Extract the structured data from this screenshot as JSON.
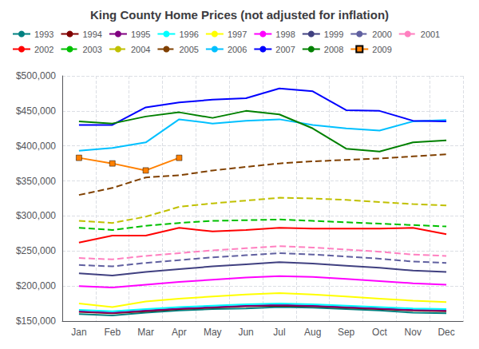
{
  "chart_data": {
    "type": "line",
    "title": "King County Home Prices (not adjusted for inflation)",
    "categories": [
      "Jan",
      "Feb",
      "Mar",
      "Apr",
      "May",
      "Jun",
      "Jul",
      "Aug",
      "Sep",
      "Oct",
      "Nov",
      "Dec"
    ],
    "series": [
      {
        "name": "1993",
        "color": "#008080",
        "line_style": "solid",
        "values": [
          160000,
          158000,
          162000,
          165000,
          167000,
          168000,
          170000,
          169000,
          167000,
          165000,
          162000,
          161000
        ]
      },
      {
        "name": "1994",
        "color": "#800000",
        "line_style": "solid",
        "values": [
          163000,
          161000,
          164000,
          167000,
          169000,
          171000,
          172000,
          171000,
          169000,
          167000,
          165000,
          164000
        ]
      },
      {
        "name": "1995",
        "color": "#800080",
        "line_style": "solid",
        "values": [
          164000,
          162000,
          165000,
          168000,
          170000,
          172000,
          173000,
          172000,
          170000,
          168000,
          166000,
          165000
        ]
      },
      {
        "name": "1996",
        "color": "#00ffff",
        "line_style": "solid",
        "values": [
          166000,
          164000,
          167000,
          170000,
          172000,
          174000,
          175000,
          174000,
          172000,
          170000,
          168000,
          167000
        ]
      },
      {
        "name": "1997",
        "color": "#ffff00",
        "line_style": "solid",
        "values": [
          175000,
          170000,
          178000,
          182000,
          185000,
          188000,
          190000,
          188000,
          185000,
          182000,
          179000,
          177000
        ]
      },
      {
        "name": "1998",
        "color": "#ff00ff",
        "line_style": "solid",
        "values": [
          200000,
          198000,
          202000,
          206000,
          209000,
          212000,
          214000,
          213000,
          210000,
          207000,
          204000,
          202000
        ]
      },
      {
        "name": "1999",
        "color": "#404080",
        "line_style": "solid",
        "values": [
          218000,
          215000,
          220000,
          224000,
          228000,
          231000,
          234000,
          232000,
          229000,
          226000,
          222000,
          220000
        ]
      },
      {
        "name": "2000",
        "color": "#6060a0",
        "line_style": "dashed",
        "values": [
          230000,
          228000,
          233000,
          237000,
          241000,
          244000,
          247000,
          245000,
          242000,
          239000,
          235000,
          233000
        ]
      },
      {
        "name": "2001",
        "color": "#ff80c0",
        "line_style": "dashed",
        "values": [
          240000,
          238000,
          243000,
          247000,
          251000,
          254000,
          257000,
          255000,
          252000,
          249000,
          245000,
          243000
        ]
      },
      {
        "name": "2002",
        "color": "#ff0000",
        "line_style": "solid",
        "values": [
          262000,
          272000,
          272000,
          283000,
          278000,
          280000,
          283000,
          282000,
          282000,
          282000,
          283000,
          274000
        ]
      },
      {
        "name": "2003",
        "color": "#00c000",
        "line_style": "dashed",
        "values": [
          283000,
          280000,
          286000,
          290000,
          293000,
          294000,
          295000,
          293000,
          291000,
          289000,
          287000,
          285000
        ]
      },
      {
        "name": "2004",
        "color": "#c0c000",
        "line_style": "dashed",
        "values": [
          293000,
          290000,
          299000,
          313000,
          318000,
          322000,
          326000,
          325000,
          323000,
          320000,
          317000,
          315000
        ]
      },
      {
        "name": "2005",
        "color": "#804000",
        "line_style": "dashed",
        "values": [
          330000,
          340000,
          355000,
          358000,
          365000,
          370000,
          375000,
          378000,
          380000,
          382000,
          385000,
          388000
        ]
      },
      {
        "name": "2006",
        "color": "#00c0ff",
        "line_style": "solid",
        "values": [
          393000,
          397000,
          405000,
          438000,
          432000,
          436000,
          438000,
          430000,
          425000,
          422000,
          435000,
          437000
        ]
      },
      {
        "name": "2007",
        "color": "#0000ff",
        "line_style": "solid",
        "values": [
          430000,
          430000,
          455000,
          462000,
          466000,
          468000,
          482000,
          478000,
          451000,
          450000,
          436000,
          435000
        ]
      },
      {
        "name": "2008",
        "color": "#008000",
        "line_style": "solid",
        "values": [
          435000,
          432000,
          442000,
          448000,
          440000,
          450000,
          445000,
          425000,
          396000,
          392000,
          405000,
          408000
        ]
      },
      {
        "name": "2009",
        "color": "#ff8000",
        "line_style": "solid",
        "marker": "square",
        "values": [
          383000,
          375000,
          365000,
          383000,
          null,
          null,
          null,
          null,
          null,
          null,
          null,
          null
        ]
      }
    ],
    "ylim": [
      150000,
      500000
    ],
    "yticks": [
      {
        "value": 150000,
        "label": "$150,000"
      },
      {
        "value": 200000,
        "label": "$200,000"
      },
      {
        "value": 250000,
        "label": "$250,000"
      },
      {
        "value": 300000,
        "label": "$300,000"
      },
      {
        "value": 350000,
        "label": "$350,000"
      },
      {
        "value": 400000,
        "label": "$400,000"
      },
      {
        "value": 450000,
        "label": "$450,000"
      },
      {
        "value": 500000,
        "label": "$500,000"
      }
    ],
    "grid": true,
    "legend": "top"
  }
}
